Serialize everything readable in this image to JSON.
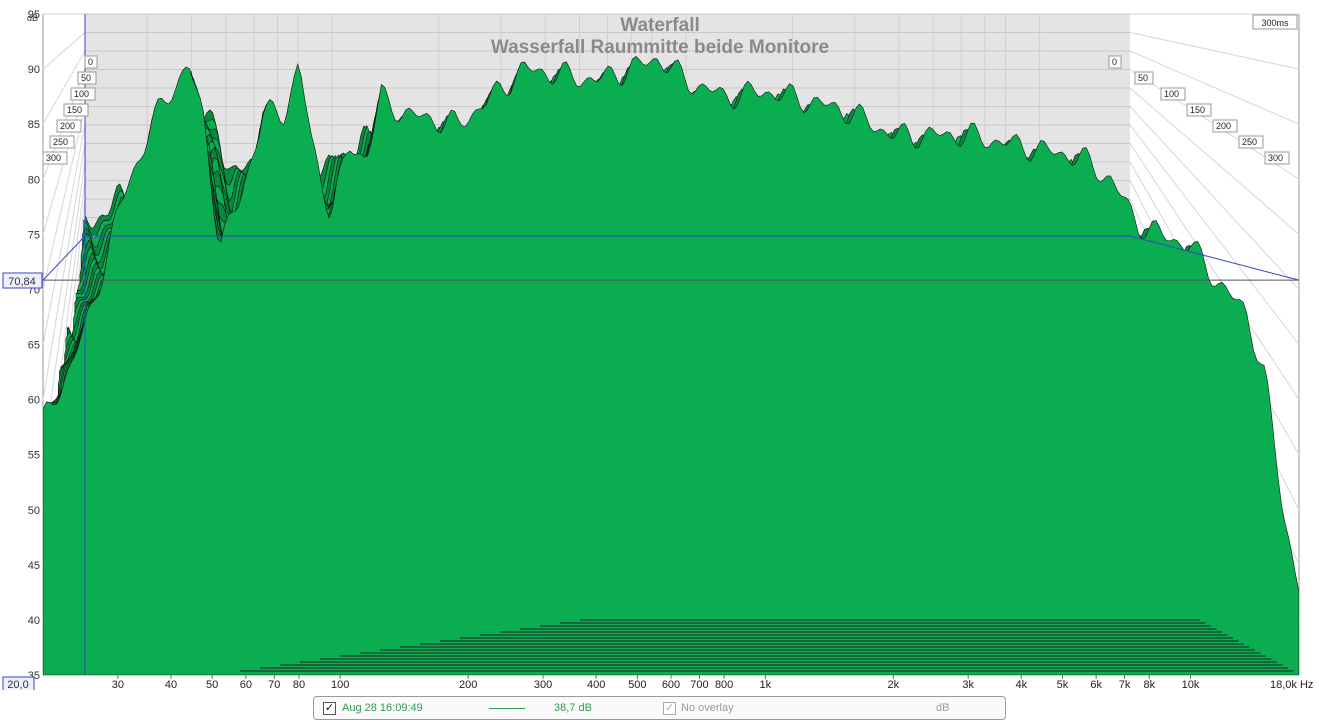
{
  "chart_data": {
    "type": "area",
    "variant": "waterfall",
    "title": "Waterfall",
    "subtitle": "Wasserfall Raummitte beide Monitore",
    "ylabel": "dB",
    "xlabel": "Hz",
    "x_scale": "log",
    "xlim": [
      20,
      18000
    ],
    "ylim": [
      35,
      95
    ],
    "y_ticks": [
      "35",
      "40",
      "45",
      "50",
      "55",
      "60",
      "65",
      "70",
      "75",
      "80",
      "85",
      "90",
      "95"
    ],
    "x_ticks": [
      {
        "value": 30,
        "label": "30"
      },
      {
        "value": 40,
        "label": "40"
      },
      {
        "value": 50,
        "label": "50"
      },
      {
        "value": 60,
        "label": "60"
      },
      {
        "value": 70,
        "label": "70"
      },
      {
        "value": 80,
        "label": "80"
      },
      {
        "value": 100,
        "label": "100"
      },
      {
        "value": 200,
        "label": "200"
      },
      {
        "value": 300,
        "label": "300"
      },
      {
        "value": 400,
        "label": "400"
      },
      {
        "value": 500,
        "label": "500"
      },
      {
        "value": 600,
        "label": "600"
      },
      {
        "value": 700,
        "label": "700"
      },
      {
        "value": 800,
        "label": "800"
      },
      {
        "value": 1000,
        "label": "1k"
      },
      {
        "value": 2000,
        "label": "2k"
      },
      {
        "value": 3000,
        "label": "3k"
      },
      {
        "value": 4000,
        "label": "4k"
      },
      {
        "value": 5000,
        "label": "5k"
      },
      {
        "value": 6000,
        "label": "6k"
      },
      {
        "value": 7000,
        "label": "7k"
      },
      {
        "value": 8000,
        "label": "8k"
      },
      {
        "value": 10000,
        "label": "10k"
      }
    ],
    "x_end_label": "18,0k Hz",
    "time_ticks": [
      "0",
      "50",
      "100",
      "150",
      "200",
      "250",
      "300"
    ],
    "time_max_label": "300ms",
    "cursor_y_label": "70,84",
    "cursor_y_value": 70.84,
    "x_start_label": "20,0",
    "floor_db": 35,
    "peak_envelope": [
      {
        "hz": 20,
        "db": 58
      },
      {
        "hz": 22,
        "db": 61
      },
      {
        "hz": 26,
        "db": 68
      },
      {
        "hz": 30,
        "db": 77
      },
      {
        "hz": 36,
        "db": 85
      },
      {
        "hz": 40,
        "db": 88
      },
      {
        "hz": 44,
        "db": 90.5
      },
      {
        "hz": 48,
        "db": 85
      },
      {
        "hz": 52,
        "db": 74
      },
      {
        "hz": 58,
        "db": 78
      },
      {
        "hz": 66,
        "db": 86
      },
      {
        "hz": 74,
        "db": 86
      },
      {
        "hz": 80,
        "db": 90.5
      },
      {
        "hz": 86,
        "db": 83
      },
      {
        "hz": 95,
        "db": 77
      },
      {
        "hz": 105,
        "db": 83
      },
      {
        "hz": 115,
        "db": 82
      },
      {
        "hz": 125,
        "db": 87.5
      },
      {
        "hz": 140,
        "db": 86
      },
      {
        "hz": 160,
        "db": 85.5
      },
      {
        "hz": 190,
        "db": 85
      },
      {
        "hz": 220,
        "db": 87
      },
      {
        "hz": 270,
        "db": 90
      },
      {
        "hz": 330,
        "db": 89.5
      },
      {
        "hz": 400,
        "db": 89
      },
      {
        "hz": 480,
        "db": 90
      },
      {
        "hz": 560,
        "db": 91
      },
      {
        "hz": 650,
        "db": 89
      },
      {
        "hz": 800,
        "db": 87.5
      },
      {
        "hz": 1000,
        "db": 88
      },
      {
        "hz": 1300,
        "db": 87
      },
      {
        "hz": 1600,
        "db": 86
      },
      {
        "hz": 2000,
        "db": 84
      },
      {
        "hz": 2600,
        "db": 84
      },
      {
        "hz": 3000,
        "db": 84
      },
      {
        "hz": 4000,
        "db": 83
      },
      {
        "hz": 5500,
        "db": 82
      },
      {
        "hz": 6500,
        "db": 80
      },
      {
        "hz": 7500,
        "db": 76
      },
      {
        "hz": 8500,
        "db": 75
      },
      {
        "hz": 10000,
        "db": 74
      },
      {
        "hz": 12000,
        "db": 70
      },
      {
        "hz": 13500,
        "db": 68
      },
      {
        "hz": 15000,
        "db": 62
      },
      {
        "hz": 16500,
        "db": 50
      },
      {
        "hz": 18000,
        "db": 43
      }
    ],
    "colors": {
      "fill": "#0aae50",
      "fill_dark": "#078a3f",
      "stroke": "#111111",
      "axis_blue": "#3344cc",
      "cursor": "#555555"
    }
  },
  "legend": {
    "item1_label": "Aug 28 16:09:49",
    "item1_value": "38,7 dB",
    "item1_checked_glyph": "✓",
    "item2_checked_glyph": "✓",
    "overlay_label": "No overlay",
    "unit": "dB"
  }
}
